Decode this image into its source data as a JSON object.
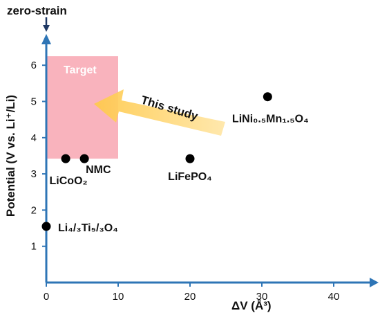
{
  "chart_data": {
    "type": "scatter",
    "xlabel": "ΔV (Å³)",
    "ylabel": "Potential (V vs. Li⁺/Li)",
    "xlim": [
      0,
      45
    ],
    "ylim": [
      0,
      6.6
    ],
    "x_ticks": [
      "0",
      "10",
      "20",
      "30",
      "40"
    ],
    "y_ticks": [
      "1",
      "2",
      "3",
      "4",
      "5",
      "6"
    ],
    "x_tick_values": [
      0,
      10,
      20,
      30,
      40
    ],
    "y_tick_values": [
      1,
      2,
      3,
      4,
      5,
      6
    ],
    "grid": false,
    "points": [
      {
        "label": "Li₄/₃Ti₅/₃O₄",
        "x": 0,
        "y": 1.55
      },
      {
        "label": "LiCoO₂",
        "x": 2.7,
        "y": 3.42
      },
      {
        "label": "NMC",
        "x": 5.3,
        "y": 3.42
      },
      {
        "label": "LiFePO₄",
        "x": 20,
        "y": 3.42
      },
      {
        "label": "LiNi₀.₅Mn₁.₅O₄",
        "x": 30.8,
        "y": 5.13
      }
    ],
    "target_region": {
      "label": "Target",
      "x": [
        0,
        10
      ],
      "y": [
        3.42,
        6.25
      ],
      "color": "#f9b3bd"
    },
    "annotations": {
      "zero_strain": "zero-strain",
      "this_study": "This study"
    },
    "colors": {
      "axis": "#2e75b6",
      "marker": "#000000",
      "arrow": "#ffd77a",
      "zero_strain_arrow": "#1f3864"
    }
  }
}
